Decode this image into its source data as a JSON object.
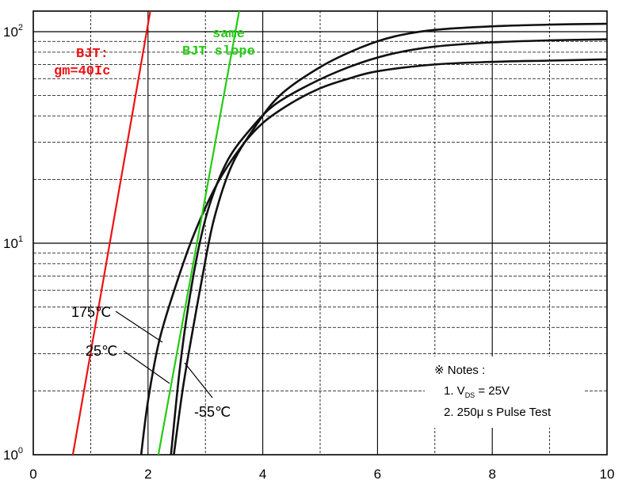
{
  "chart_data": {
    "type": "line",
    "title": "",
    "xlabel": "",
    "ylabel": "",
    "xlim": [
      0,
      10
    ],
    "ylim": [
      1,
      130
    ],
    "yscale": "log",
    "grid": true,
    "x_ticks": [
      "0",
      "2",
      "4",
      "6",
      "8",
      "10"
    ],
    "y_ticks": [
      {
        "base": "10",
        "exp": "0",
        "value": 1
      },
      {
        "base": "10",
        "exp": "1",
        "value": 10
      },
      {
        "base": "10",
        "exp": "2",
        "value": 100
      }
    ],
    "series": [
      {
        "name": "175℃",
        "points": [
          [
            1.88,
            1.0
          ],
          [
            2.0,
            1.8
          ],
          [
            2.2,
            3.5
          ],
          [
            2.5,
            6.5
          ],
          [
            2.8,
            11
          ],
          [
            3.2,
            19
          ],
          [
            3.6,
            28
          ],
          [
            4.0,
            37
          ],
          [
            4.5,
            46
          ],
          [
            5.0,
            54
          ],
          [
            5.5,
            60
          ],
          [
            6.0,
            65
          ],
          [
            7.0,
            70
          ],
          [
            8.0,
            72
          ],
          [
            9.0,
            73
          ],
          [
            10.0,
            74
          ]
        ]
      },
      {
        "name": "25℃",
        "points": [
          [
            2.4,
            1.0
          ],
          [
            2.55,
            2.5
          ],
          [
            2.7,
            5
          ],
          [
            2.9,
            10
          ],
          [
            3.1,
            16
          ],
          [
            3.4,
            25
          ],
          [
            3.8,
            35
          ],
          [
            4.2,
            45
          ],
          [
            4.8,
            56
          ],
          [
            5.5,
            68
          ],
          [
            6.2,
            78
          ],
          [
            7.0,
            85
          ],
          [
            8.0,
            89
          ],
          [
            9.0,
            91
          ],
          [
            10.0,
            92
          ]
        ]
      },
      {
        "name": "-55℃",
        "points": [
          [
            2.45,
            1.0
          ],
          [
            2.6,
            2.0
          ],
          [
            2.75,
            3.5
          ],
          [
            2.95,
            7
          ],
          [
            3.15,
            13
          ],
          [
            3.45,
            23
          ],
          [
            3.85,
            35
          ],
          [
            4.3,
            50
          ],
          [
            5.0,
            68
          ],
          [
            5.7,
            84
          ],
          [
            6.3,
            95
          ],
          [
            7.0,
            102
          ],
          [
            8.0,
            106
          ],
          [
            9.0,
            108
          ],
          [
            10.0,
            109
          ]
        ]
      },
      {
        "name": "BJT: gm=40Ic",
        "points": [
          [
            0.62,
            0.78
          ],
          [
            2.05,
            130
          ]
        ]
      },
      {
        "name": "same BJT slope",
        "points": [
          [
            2.15,
            0.9
          ],
          [
            3.6,
            130
          ]
        ]
      }
    ],
    "annotations": {
      "bjt_line1": "BJT:",
      "bjt_line2": "gm=40Ic",
      "same_line1": "same",
      "same_line2": "BJT slope",
      "label_175": "175℃",
      "label_25": "25℃",
      "label_m55": "-55℃",
      "notes_title": "※ Notes :",
      "note1_prefix": "1. V",
      "note1_sub": "DS",
      "note1_suffix": " = 25V",
      "note2": "2. 250μ s Pulse Test"
    },
    "colors": {
      "bjt": "#ee1111",
      "same_slope": "#22cc11",
      "curves": "#111111",
      "grid": "#000000"
    }
  }
}
